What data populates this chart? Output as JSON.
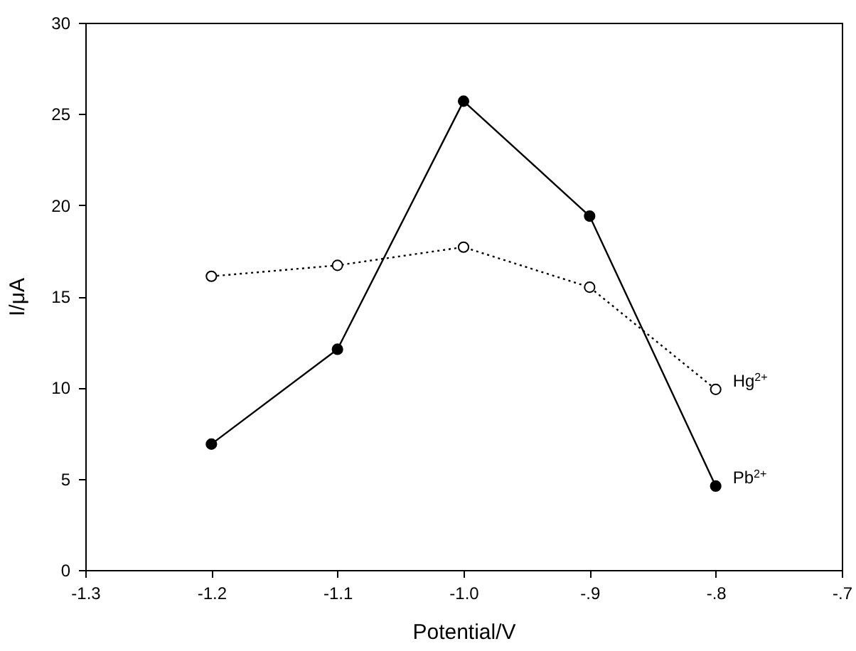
{
  "chart_data": {
    "type": "line",
    "xlabel": "Potential/V",
    "ylabel": "I/μA",
    "x": [
      -1.2,
      -1.1,
      -1.0,
      -0.9,
      -0.8
    ],
    "series": [
      {
        "name": "Pb$^{2+}$",
        "color": "#000000",
        "values": [
          6.9,
          12.1,
          25.7,
          19.4,
          4.6
        ],
        "line_style": "solid"
      },
      {
        "name": "Hg$^{2+}$",
        "color": "#000000",
        "values": [
          16.1,
          16.7,
          17.7,
          15.5,
          9.9
        ],
        "line_style": "dotted"
      }
    ],
    "xlim": [
      -1.3,
      -0.7
    ],
    "xticks": [
      {
        "value": -1.3,
        "label": "-1.3"
      },
      {
        "value": -1.2,
        "label": "-1.2"
      },
      {
        "value": -1.1,
        "label": "-1.1"
      },
      {
        "value": -1.0,
        "label": "-1.0"
      },
      {
        "value": -0.9,
        "label": "-.9"
      },
      {
        "value": -0.8,
        "label": "-.8"
      },
      {
        "value": -0.7,
        "label": "-.7"
      }
    ],
    "ylim": [
      0,
      30
    ],
    "yticks": [
      0,
      5,
      10,
      15,
      20,
      25,
      30
    ],
    "marker": "circle",
    "grid": false
  }
}
